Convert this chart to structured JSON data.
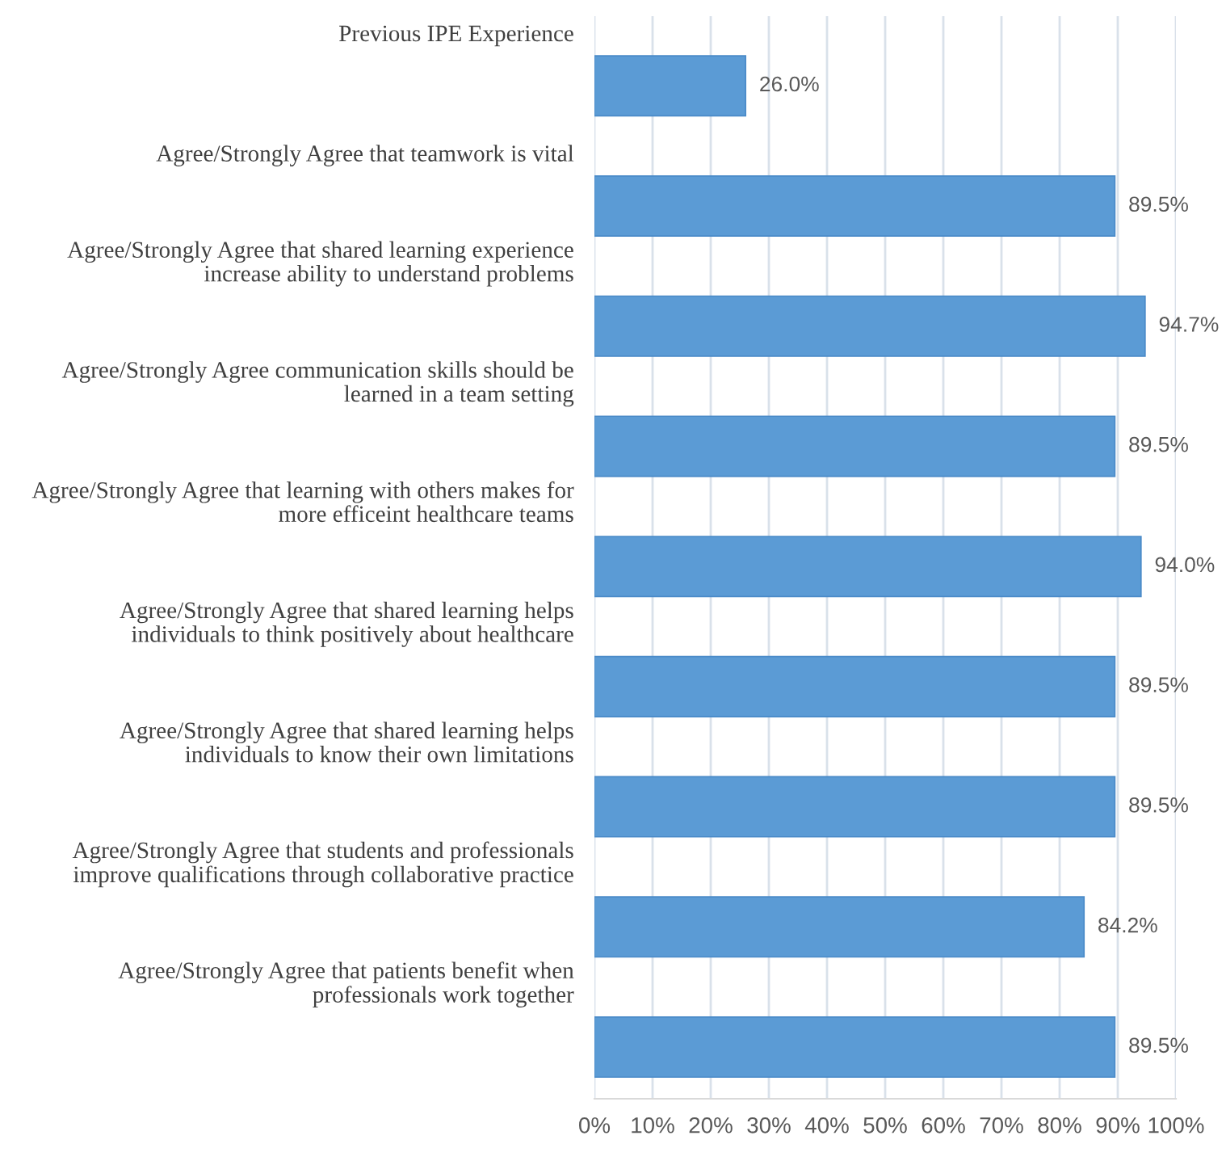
{
  "chart_data": {
    "type": "bar",
    "orientation": "horizontal",
    "categories": [
      "Previous IPE Experience",
      "Agree/Strongly Agree that teamwork is vital",
      "Agree/Strongly Agree that shared learning experience\nincrease ability to understand problems",
      "Agree/Strongly Agree communication skills should be\nlearned in a team setting",
      "Agree/Strongly Agree that learning with others makes for\nmore efficeint healthcare teams",
      "Agree/Strongly Agree that shared learning helps\nindividuals to think positively about healthcare",
      "Agree/Strongly Agree that shared learning helps\nindividuals to know their own limitations",
      "Agree/Strongly Agree that students and professionals\nimprove qualifications through collaborative practice",
      "Agree/Strongly Agree that patients benefit when\nprofessionals work together"
    ],
    "values": [
      26.0,
      89.5,
      94.7,
      89.5,
      94.0,
      89.5,
      89.5,
      84.2,
      89.5
    ],
    "value_labels": [
      "26.0%",
      "89.5%",
      "94.7%",
      "89.5%",
      "94.0%",
      "89.5%",
      "89.5%",
      "84.2%",
      "89.5%"
    ],
    "color": "#5b9bd5",
    "xlim": [
      0,
      100
    ],
    "xticks": [
      {
        "value": 0,
        "label": "0%"
      },
      {
        "value": 10,
        "label": "10%"
      },
      {
        "value": 20,
        "label": "20%"
      },
      {
        "value": 30,
        "label": "30%"
      },
      {
        "value": 40,
        "label": "40%"
      },
      {
        "value": 50,
        "label": "50%"
      },
      {
        "value": 60,
        "label": "60%"
      },
      {
        "value": 70,
        "label": "70%"
      },
      {
        "value": 80,
        "label": "80%"
      },
      {
        "value": 90,
        "label": "90%"
      },
      {
        "value": 100,
        "label": "100%"
      }
    ],
    "grid": "x",
    "legend": false
  }
}
